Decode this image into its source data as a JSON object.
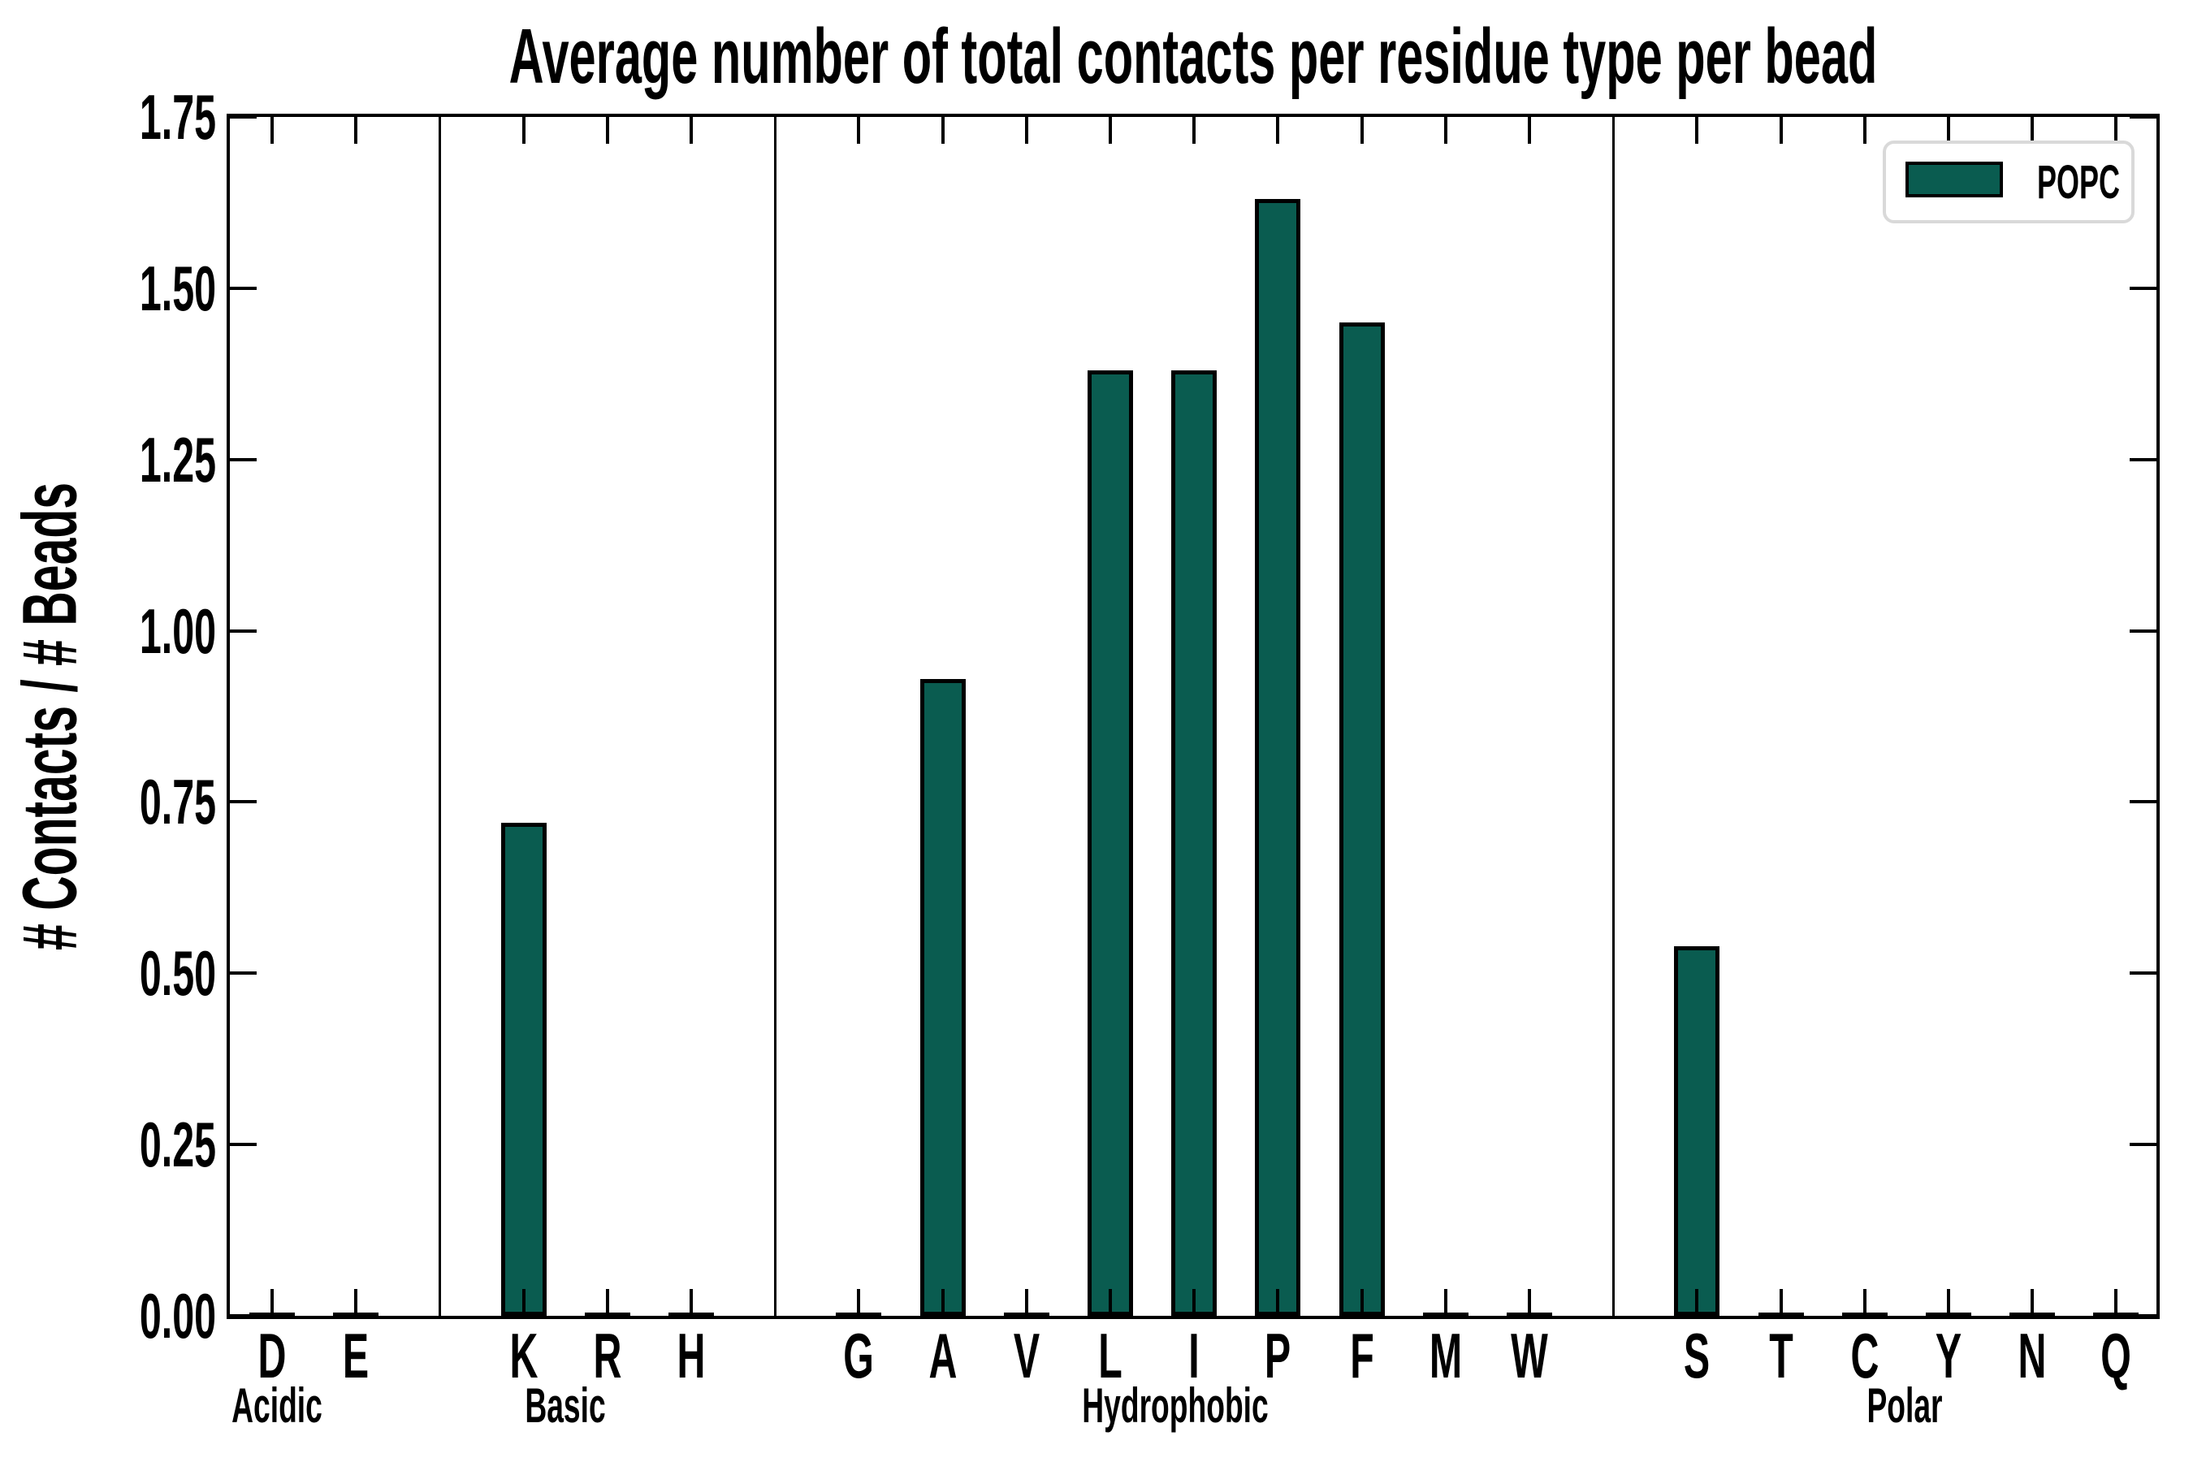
{
  "title": "Average number of total contacts per residue type per bead",
  "ylabel": "# Contacts / # Beads",
  "legend": {
    "label": "POPC"
  },
  "colors": {
    "bar_fill": "#0a5c50",
    "bar_edge": "#000000",
    "axis": "#000000",
    "legend_border": "#d9d9d9",
    "background": "#ffffff"
  },
  "y_axis": {
    "min": 0.0,
    "max": 1.75,
    "tick_step": 0.25,
    "tick_labels": [
      "0.00",
      "0.25",
      "0.50",
      "0.75",
      "1.00",
      "1.25",
      "1.50",
      "1.75"
    ]
  },
  "chart_data": {
    "type": "bar",
    "title": "Average number of total contacts per residue type per bead",
    "xlabel": "",
    "ylabel": "# Contacts / # Beads",
    "ylim": [
      0,
      1.75
    ],
    "grid": false,
    "legend_entries": [
      "POPC"
    ],
    "legend_position": "upper right",
    "groups": [
      {
        "label": "Acidic",
        "categories": [
          "D",
          "E"
        ],
        "values": [
          0,
          0
        ]
      },
      {
        "label": "Basic",
        "categories": [
          "K",
          "R",
          "H"
        ],
        "values": [
          0.72,
          0,
          0
        ]
      },
      {
        "label": "Hydrophobic",
        "categories": [
          "G",
          "A",
          "V",
          "L",
          "I",
          "P",
          "F",
          "M",
          "W"
        ],
        "values": [
          0,
          0.93,
          0,
          1.38,
          1.38,
          1.63,
          1.45,
          0,
          0
        ]
      },
      {
        "label": "Polar",
        "categories": [
          "S",
          "T",
          "C",
          "Y",
          "N",
          "Q"
        ],
        "values": [
          0.54,
          0,
          0,
          0,
          0,
          0
        ]
      }
    ],
    "series": [
      {
        "name": "POPC",
        "categories": [
          "D",
          "E",
          "K",
          "R",
          "H",
          "G",
          "A",
          "V",
          "L",
          "I",
          "P",
          "F",
          "M",
          "W",
          "S",
          "T",
          "C",
          "Y",
          "N",
          "Q"
        ],
        "values": [
          0,
          0,
          0.72,
          0,
          0,
          0,
          0.93,
          0,
          1.38,
          1.38,
          1.63,
          1.45,
          0,
          0,
          0.54,
          0,
          0,
          0,
          0,
          0
        ]
      }
    ]
  }
}
